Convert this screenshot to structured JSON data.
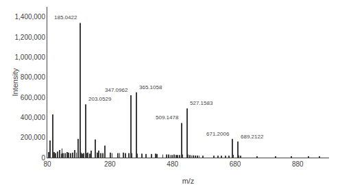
{
  "chart_data": {
    "type": "bar",
    "xlabel": "m/z",
    "ylabel": "Intensity",
    "xlim": [
      80,
      980
    ],
    "ylim": [
      0,
      1500000
    ],
    "xticks": [
      80,
      280,
      480,
      680,
      880
    ],
    "yticks": [
      0,
      {
        "value": 200000,
        "label": "200,000"
      },
      {
        "value": 400000,
        "label": "400,000"
      },
      {
        "value": 600000,
        "label": "600,000"
      },
      {
        "value": 800000,
        "label": "800,000"
      },
      {
        "value": 1000000,
        "label": "1,000,000"
      },
      {
        "value": 1200000,
        "label": "1,200,000"
      },
      {
        "value": 1400000,
        "label": "1,400,000"
      }
    ],
    "grid": false,
    "series": [
      {
        "color": "#3a3a3a",
        "x": [
          185.0422,
          203.0529,
          347.0962,
          365.1058,
          509.1478,
          527.1583,
          671.2006,
          689.2122
        ],
        "values": [
          1340000,
          530000,
          620000,
          650000,
          345000,
          490000,
          185000,
          160000
        ]
      },
      {
        "color": "#3a3a3a",
        "x": [
          84,
          88,
          97,
          101,
          107,
          113,
          119,
          125,
          127,
          131,
          137,
          143,
          147,
          155,
          161,
          167,
          173,
          179,
          187,
          191,
          197,
          205,
          209,
          215,
          221,
          233,
          239,
          245,
          251,
          257,
          263,
          281,
          287,
          305,
          311,
          323,
          329,
          341,
          349,
          367,
          383,
          395,
          413,
          425,
          431,
          449,
          461,
          467,
          473,
          479,
          485,
          491,
          497,
          503,
          511,
          529,
          535,
          541,
          547,
          553,
          559,
          565,
          577,
          613,
          625,
          637,
          649,
          661,
          673,
          691,
          697,
          750,
          810,
          860,
          915,
          950
        ],
        "values": [
          55000,
          170000,
          430000,
          55000,
          45000,
          60000,
          75000,
          40000,
          90000,
          45000,
          45000,
          55000,
          50000,
          45000,
          50000,
          75000,
          50000,
          185000,
          50000,
          40000,
          45000,
          45000,
          50000,
          40000,
          70000,
          180000,
          50000,
          70000,
          45000,
          45000,
          120000,
          50000,
          45000,
          45000,
          45000,
          50000,
          45000,
          45000,
          45000,
          40000,
          40000,
          35000,
          35000,
          40000,
          35000,
          30000,
          30000,
          30000,
          25000,
          25000,
          30000,
          25000,
          25000,
          25000,
          30000,
          30000,
          25000,
          22000,
          22000,
          20000,
          20000,
          18000,
          18000,
          18000,
          18000,
          18000,
          18000,
          18000,
          28000,
          22000,
          18000,
          12000,
          10000,
          10000,
          10000,
          8000
        ]
      }
    ],
    "annotations": [
      {
        "x": 185.0422,
        "y": 1340000,
        "text": "185.0422"
      },
      {
        "x": 203.0529,
        "y": 530000,
        "text": "203.0529"
      },
      {
        "x": 347.0962,
        "y": 620000,
        "text": "347.0962"
      },
      {
        "x": 365.1058,
        "y": 650000,
        "text": "365.1058"
      },
      {
        "x": 509.1478,
        "y": 345000,
        "text": "509.1478"
      },
      {
        "x": 527.1583,
        "y": 490000,
        "text": "527.1583"
      },
      {
        "x": 671.2006,
        "y": 185000,
        "text": "671.2006"
      },
      {
        "x": 689.2122,
        "y": 160000,
        "text": "689.2122"
      }
    ]
  }
}
